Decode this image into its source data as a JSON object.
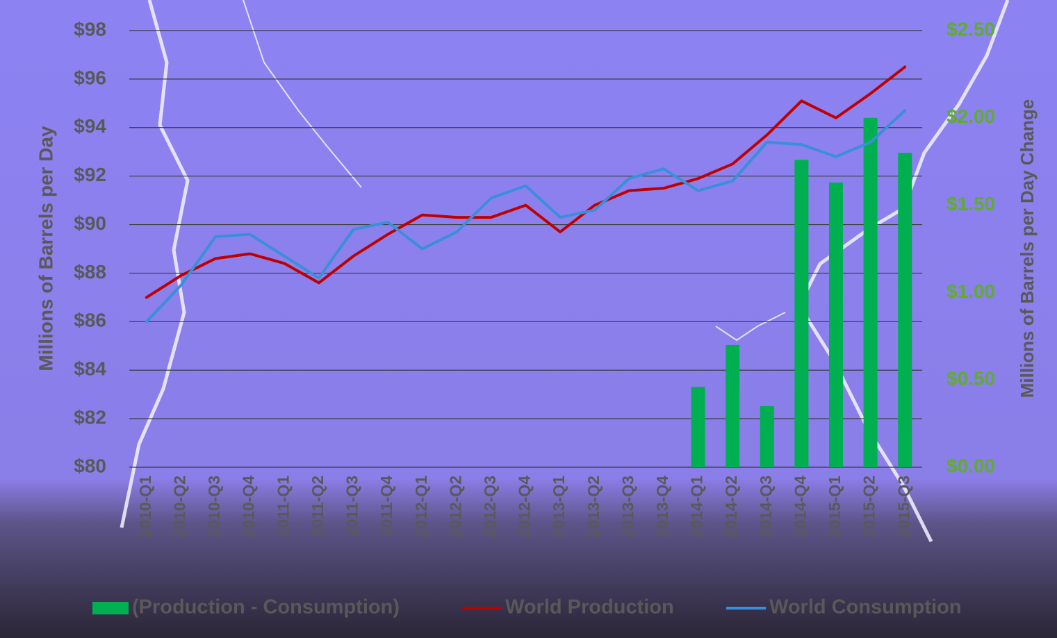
{
  "chart_data": {
    "type": "bar-line",
    "y_label": "Millions of Barrels per Day",
    "y2_label": "Millions of Barrels per Day Change",
    "categories": [
      "2010-Q1",
      "2010-Q2",
      "2010-Q3",
      "2010-Q4",
      "2011-Q1",
      "2011-Q2",
      "2011-Q3",
      "2011-Q4",
      "2012-Q1",
      "2012-Q2",
      "2012-Q3",
      "2012-Q4",
      "2013-Q1",
      "2013-Q2",
      "2013-Q3",
      "2013-Q4",
      "2014-Q1",
      "2014-Q2",
      "2014-Q3",
      "2014-Q4",
      "2015-Q1",
      "2015-Q2",
      "2015-Q3"
    ],
    "series": [
      {
        "name": "(Production - Consumption)",
        "type": "bar",
        "axis": "y2",
        "color": "#00b050",
        "values": [
          null,
          null,
          null,
          null,
          null,
          null,
          null,
          null,
          null,
          null,
          null,
          null,
          null,
          null,
          null,
          null,
          0.46,
          0.7,
          0.35,
          1.76,
          1.63,
          2.0,
          1.8
        ]
      },
      {
        "name": "World Production",
        "type": "line",
        "color": "#c00000",
        "values": [
          87.0,
          87.9,
          88.6,
          88.8,
          88.4,
          87.6,
          88.7,
          89.6,
          90.4,
          90.3,
          90.3,
          90.8,
          89.7,
          90.8,
          91.4,
          91.5,
          91.9,
          92.5,
          93.7,
          95.1,
          94.4,
          95.4,
          96.5
        ]
      },
      {
        "name": "World Consumption",
        "type": "line",
        "color": "#3a8fd8",
        "values": [
          86.0,
          87.5,
          89.5,
          89.6,
          88.7,
          87.8,
          89.8,
          90.1,
          89.0,
          89.7,
          91.1,
          91.6,
          90.3,
          90.6,
          91.9,
          92.3,
          91.4,
          91.8,
          93.4,
          93.3,
          92.8,
          93.4,
          94.7
        ]
      }
    ],
    "ylim": [
      80,
      98
    ],
    "yticks": [
      {
        "value": 80,
        "label": "$80"
      },
      {
        "value": 82,
        "label": "$82"
      },
      {
        "value": 84,
        "label": "$84"
      },
      {
        "value": 86,
        "label": "$86"
      },
      {
        "value": 88,
        "label": "$88"
      },
      {
        "value": 90,
        "label": "$90"
      },
      {
        "value": 92,
        "label": "$92"
      },
      {
        "value": 94,
        "label": "$94"
      },
      {
        "value": 96,
        "label": "$96"
      },
      {
        "value": 98,
        "label": "$98"
      }
    ],
    "y2lim": [
      0,
      2.5
    ],
    "y2ticks": [
      {
        "value": 0,
        "label": "$0.00"
      },
      {
        "value": 0.5,
        "label": "$0.50"
      },
      {
        "value": 1,
        "label": "$1.00"
      },
      {
        "value": 1.5,
        "label": "$1.50"
      },
      {
        "value": 2,
        "label": "$2.00"
      },
      {
        "value": 2.5,
        "label": "$2.50"
      }
    ],
    "grid": true,
    "legend": "bottom"
  }
}
